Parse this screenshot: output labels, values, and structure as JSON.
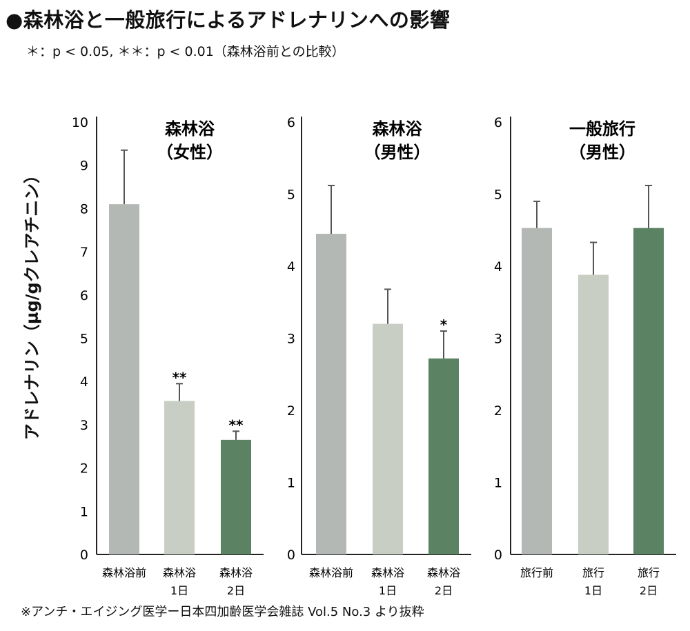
{
  "title": "●森林浴と一般旅行によるアドレナリンへの影響",
  "significance_note": "＊：p < 0.05, ＊＊：p < 0.01（森林浴前との比較）",
  "y_axis_label": "アドレナリン（μg/gクレアチニン）",
  "source": "※アンチ・エイジング医学ー日本四加齢医学会雑誌 Vol.5 No.3 より抜粋",
  "colors": {
    "before": "#b4b8b4",
    "day1": "#c8cec3",
    "day2": "#5b8263",
    "axis": "#222222"
  },
  "chart_data": [
    {
      "type": "bar",
      "title": [
        "森林浴",
        "（女性）"
      ],
      "categories": [
        [
          "森林浴前"
        ],
        [
          "森林浴",
          "1日"
        ],
        [
          "森林浴",
          "2日"
        ]
      ],
      "values": [
        8.1,
        3.55,
        2.65
      ],
      "error_upper": [
        9.35,
        3.95,
        2.85
      ],
      "significance": [
        "",
        "**",
        "**"
      ],
      "ylim": [
        0,
        10
      ],
      "yticks": [
        "0",
        "1",
        "2",
        "3",
        "4",
        "5",
        "6",
        "7",
        "8",
        "9",
        "10"
      ]
    },
    {
      "type": "bar",
      "title": [
        "森林浴",
        "（男性）"
      ],
      "categories": [
        [
          "森林浴前"
        ],
        [
          "森林浴",
          "1日"
        ],
        [
          "森林浴",
          "2日"
        ]
      ],
      "values": [
        4.45,
        3.2,
        2.72
      ],
      "error_upper": [
        5.12,
        3.68,
        3.1
      ],
      "significance": [
        "",
        "",
        "*"
      ],
      "ylim": [
        0,
        6
      ],
      "yticks": [
        "0",
        "1",
        "2",
        "3",
        "4",
        "5",
        "6"
      ]
    },
    {
      "type": "bar",
      "title": [
        "一般旅行",
        "（男性）"
      ],
      "categories": [
        [
          "旅行前"
        ],
        [
          "旅行",
          "1日"
        ],
        [
          "旅行",
          "2日"
        ]
      ],
      "values": [
        4.53,
        3.88,
        4.53
      ],
      "error_upper": [
        4.9,
        4.33,
        5.12
      ],
      "significance": [
        "",
        "",
        ""
      ],
      "ylim": [
        0,
        6
      ],
      "yticks": [
        "0",
        "1",
        "2",
        "3",
        "4",
        "5",
        "6"
      ]
    }
  ]
}
